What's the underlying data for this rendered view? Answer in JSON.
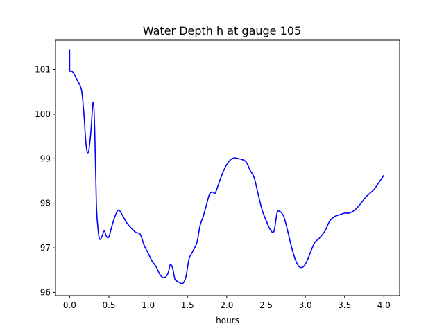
{
  "chart_data": {
    "type": "line",
    "title": "Water Depth h at gauge 105",
    "xlabel": "hours",
    "ylabel": "",
    "xlim": [
      -0.18,
      4.2
    ],
    "ylim": [
      95.93,
      101.66
    ],
    "xticks": [
      0.0,
      0.5,
      1.0,
      1.5,
      2.0,
      2.5,
      3.0,
      3.5,
      4.0
    ],
    "xtick_labels": [
      "0.0",
      "0.5",
      "1.0",
      "1.5",
      "2.0",
      "2.5",
      "3.0",
      "3.5",
      "4.0"
    ],
    "yticks": [
      96,
      97,
      98,
      99,
      100,
      101
    ],
    "ytick_labels": [
      "96",
      "97",
      "98",
      "99",
      "100",
      "101"
    ],
    "grid": false,
    "legend": false,
    "series": [
      {
        "color": "#0000ff",
        "x": [
          0.0,
          0.0,
          0.02,
          0.05,
          0.1,
          0.15,
          0.18,
          0.21,
          0.24,
          0.27,
          0.3,
          0.32,
          0.34,
          0.36,
          0.38,
          0.41,
          0.44,
          0.47,
          0.5,
          0.54,
          0.58,
          0.62,
          0.66,
          0.72,
          0.78,
          0.84,
          0.9,
          0.95,
          1.0,
          1.05,
          1.1,
          1.15,
          1.2,
          1.25,
          1.28,
          1.31,
          1.34,
          1.37,
          1.4,
          1.44,
          1.48,
          1.52,
          1.57,
          1.62,
          1.66,
          1.7,
          1.74,
          1.78,
          1.82,
          1.85,
          1.88,
          1.92,
          1.96,
          2.0,
          2.05,
          2.1,
          2.15,
          2.2,
          2.25,
          2.3,
          2.35,
          2.4,
          2.45,
          2.5,
          2.55,
          2.6,
          2.64,
          2.67,
          2.7,
          2.73,
          2.77,
          2.82,
          2.87,
          2.92,
          2.97,
          3.02,
          3.07,
          3.12,
          3.18,
          3.25,
          3.31,
          3.37,
          3.45,
          3.5,
          3.56,
          3.63,
          3.7,
          3.76,
          3.82,
          3.88,
          3.93,
          3.97,
          4.0
        ],
        "y": [
          101.45,
          101.0,
          100.97,
          100.92,
          100.75,
          100.55,
          100.05,
          99.3,
          99.15,
          99.6,
          100.27,
          99.6,
          98.0,
          97.45,
          97.2,
          97.25,
          97.38,
          97.25,
          97.25,
          97.5,
          97.72,
          97.85,
          97.77,
          97.58,
          97.45,
          97.35,
          97.3,
          97.05,
          96.88,
          96.7,
          96.58,
          96.4,
          96.33,
          96.42,
          96.62,
          96.55,
          96.3,
          96.25,
          96.22,
          96.2,
          96.35,
          96.75,
          96.93,
          97.12,
          97.5,
          97.7,
          97.95,
          98.2,
          98.25,
          98.22,
          98.35,
          98.55,
          98.73,
          98.87,
          98.98,
          99.02,
          99.0,
          98.98,
          98.92,
          98.73,
          98.57,
          98.2,
          97.85,
          97.62,
          97.42,
          97.37,
          97.78,
          97.82,
          97.78,
          97.68,
          97.42,
          97.05,
          96.75,
          96.58,
          96.57,
          96.7,
          96.92,
          97.12,
          97.22,
          97.38,
          97.6,
          97.7,
          97.75,
          97.78,
          97.78,
          97.85,
          97.98,
          98.12,
          98.22,
          98.32,
          98.45,
          98.55,
          98.63
        ]
      }
    ]
  }
}
